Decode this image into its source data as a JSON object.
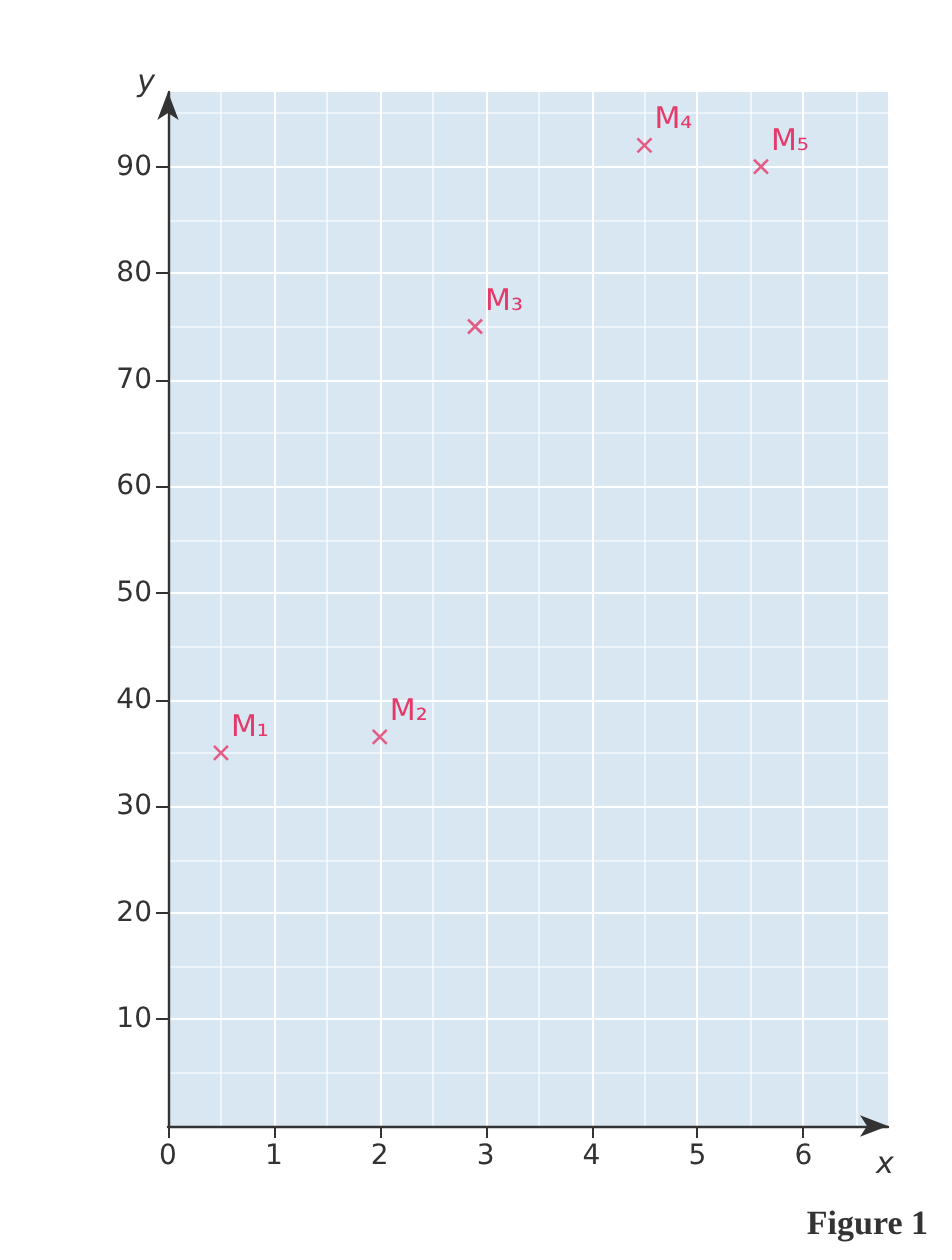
{
  "chart_data": {
    "type": "scatter",
    "x": [
      0.5,
      2,
      2.9,
      4.5,
      5.6
    ],
    "values": [
      35,
      36.5,
      75,
      92,
      90
    ],
    "color": "#e5396a",
    "marker": "cross",
    "xlabel": "x",
    "ylabel": "y",
    "xlim": [
      0,
      6.8
    ],
    "ylim": [
      0,
      97
    ],
    "xticks": [
      0,
      1,
      2,
      3,
      4,
      5,
      6
    ],
    "yticks": [
      10,
      20,
      30,
      40,
      50,
      60,
      70,
      80,
      90
    ],
    "grid": true,
    "annotations": [
      {
        "text": "M₁",
        "x": 0.5,
        "y": 35
      },
      {
        "text": "M₂",
        "x": 2,
        "y": 36.5
      },
      {
        "text": "M₃",
        "x": 2.9,
        "y": 75
      },
      {
        "text": "M₄",
        "x": 4.5,
        "y": 92
      },
      {
        "text": "M₅",
        "x": 5.6,
        "y": 90
      },
      "Figure 1"
    ]
  }
}
